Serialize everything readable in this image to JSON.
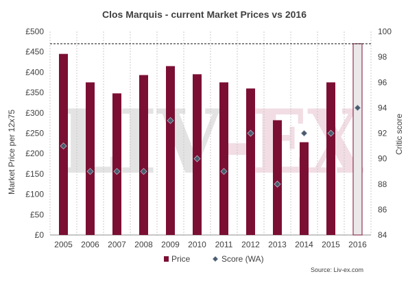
{
  "chart_data": {
    "type": "bar",
    "title": "Clos Marquis - current Market Prices vs 2016",
    "categories": [
      "2005",
      "2006",
      "2007",
      "2008",
      "2009",
      "2010",
      "2011",
      "2012",
      "2013",
      "2014",
      "2015",
      "2016"
    ],
    "series": [
      {
        "name": "Price",
        "kind": "bar",
        "axis": "left",
        "color": "#7b0f33",
        "values": [
          445,
          375,
          348,
          393,
          415,
          395,
          375,
          360,
          282,
          228,
          375,
          470
        ]
      },
      {
        "name": "Score (WA)",
        "kind": "scatter",
        "axis": "right",
        "color": "#4a5a6e",
        "values": [
          91,
          89,
          89,
          89,
          93,
          90,
          89,
          92,
          88,
          92,
          92,
          94
        ]
      }
    ],
    "highlight": {
      "category": "2016",
      "fill": "#ece7e9",
      "border": "#7b0f33"
    },
    "reference_line": {
      "value": 470,
      "axis": "left",
      "style": "dashed"
    },
    "ylabel": "Market Price per 12x75",
    "ylabel_right": "Critic score",
    "ylim": [
      0,
      500
    ],
    "ylim_right": [
      84,
      100
    ],
    "yticks": [
      "£0",
      "£50",
      "£100",
      "£150",
      "£200",
      "£250",
      "£300",
      "£350",
      "£400",
      "£450",
      "£500"
    ],
    "yticks_right": [
      "84",
      "86",
      "88",
      "90",
      "92",
      "94",
      "96",
      "98",
      "100"
    ],
    "grid": "vertical dashed",
    "legend": {
      "position": "bottom",
      "items": [
        "Price",
        "Score (WA)"
      ]
    },
    "watermark": "LIV-EX",
    "source": "Source: Liv-ex.com"
  }
}
